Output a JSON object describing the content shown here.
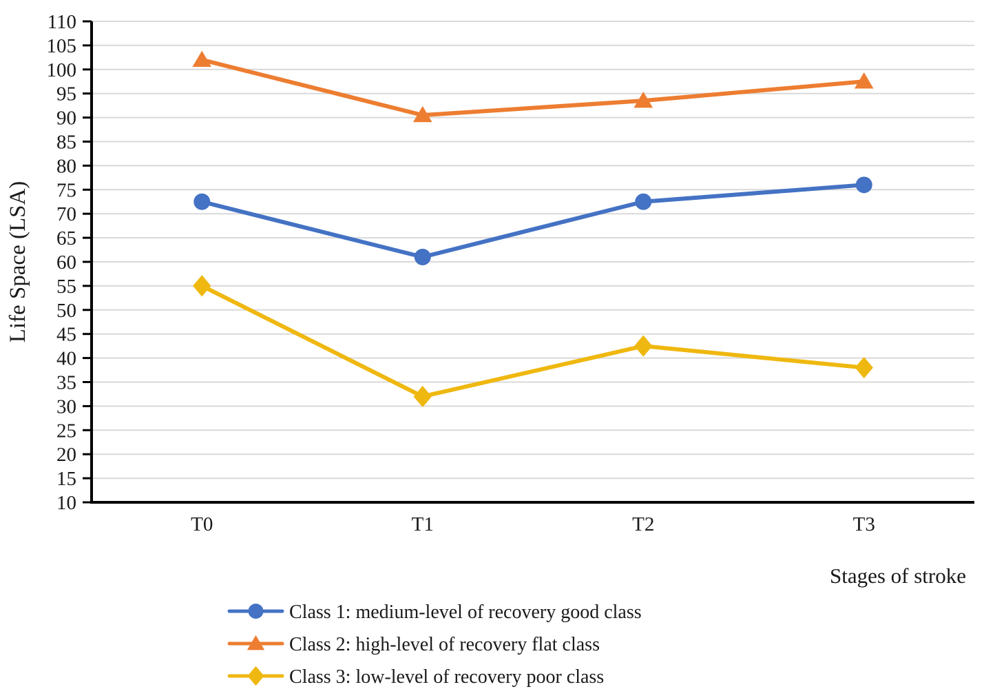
{
  "chart_data": {
    "type": "line",
    "title": "",
    "categories": [
      "T0",
      "T1",
      "T2",
      "T3"
    ],
    "series": [
      {
        "name": "Class 1: medium-level of recovery good class",
        "marker": "circle",
        "color": "#4472C4",
        "values": [
          72.5,
          61,
          72.5,
          76
        ]
      },
      {
        "name": "Class 2: high-level of recovery flat class",
        "marker": "triangle",
        "color": "#ED7D31",
        "values": [
          102,
          90.5,
          93.5,
          97.5
        ]
      },
      {
        "name": "Class 3: low-level of recovery poor class",
        "marker": "diamond",
        "color": "#EFB810",
        "values": [
          55,
          32,
          42.5,
          38
        ]
      }
    ],
    "xlabel": "Stages of stroke",
    "ylabel": "Life Space (LSA)",
    "ylim": [
      10,
      110
    ],
    "ytick_step": 5,
    "y_tick_labels": [
      "110",
      "105",
      "100",
      "95",
      "90",
      "85",
      "80",
      "75",
      "70",
      "65",
      "60",
      "55",
      "50",
      "45",
      "40",
      "35",
      "30",
      "25",
      "20",
      "15",
      "10"
    ],
    "grid": "horizontal",
    "legend_position": "bottom-left"
  },
  "colors": {
    "gridline": "#D9D9D9",
    "axis": "#000000",
    "text": "#1A1A1A",
    "background": "#FFFFFF"
  }
}
